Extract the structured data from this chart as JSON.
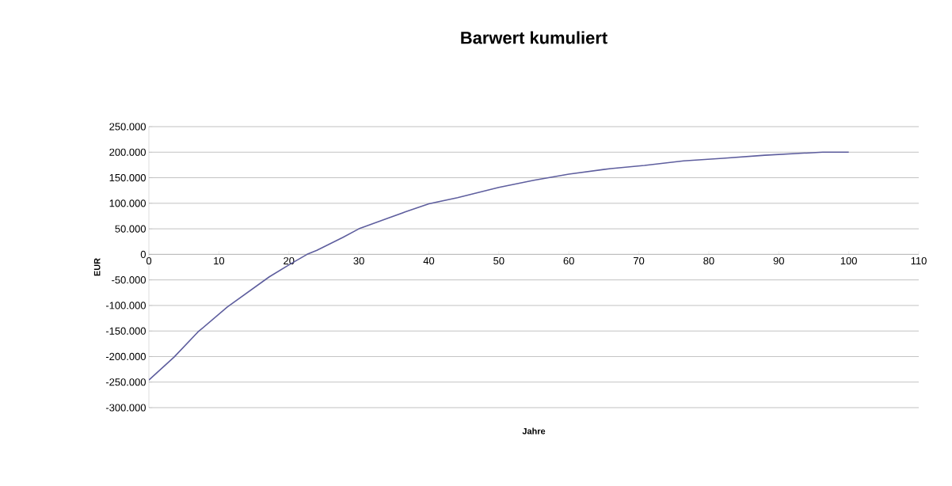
{
  "chart_data": {
    "type": "line",
    "title": "Barwert kumuliert",
    "xlabel": "Jahre",
    "ylabel": "EUR",
    "x": [
      0,
      3.6,
      7,
      11.2,
      17.2,
      20.2,
      22.6,
      24,
      27.7,
      30,
      34.2,
      36.6,
      40,
      44.1,
      50,
      55,
      60,
      66,
      70.8,
      76.4,
      82,
      88,
      93.4,
      96.3,
      100
    ],
    "series": [
      {
        "color": "#5e5e9e",
        "values": [
          -246000,
          -201000,
          -152000,
          -103000,
          -44000,
          -19000,
          0,
          8000,
          33000,
          50000,
          71000,
          83000,
          99000,
          111000,
          131000,
          145000,
          157000,
          168000,
          174000,
          183000,
          188000,
          194000,
          198000,
          200000,
          200000
        ]
      }
    ],
    "xlim": [
      0,
      110
    ],
    "xticks": [
      0,
      10,
      20,
      30,
      40,
      50,
      60,
      70,
      80,
      90,
      100,
      110
    ],
    "ylim": [
      -300000,
      250000
    ],
    "yticks": [
      {
        "value": -300000,
        "label": "-300.000"
      },
      {
        "value": -250000,
        "label": "-250.000"
      },
      {
        "value": -200000,
        "label": "-200.000"
      },
      {
        "value": -150000,
        "label": "-150.000"
      },
      {
        "value": -100000,
        "label": "-100.000"
      },
      {
        "value": -50000,
        "label": "-50.000"
      },
      {
        "value": 0,
        "label": "0"
      },
      {
        "value": 50000,
        "label": "50.000"
      },
      {
        "value": 100000,
        "label": "100.000"
      },
      {
        "value": 150000,
        "label": "150.000"
      },
      {
        "value": 200000,
        "label": "200.000"
      },
      {
        "value": 250000,
        "label": "250.000"
      }
    ],
    "grid": "y",
    "legend": false,
    "marker": "none",
    "line_style": "solid"
  }
}
